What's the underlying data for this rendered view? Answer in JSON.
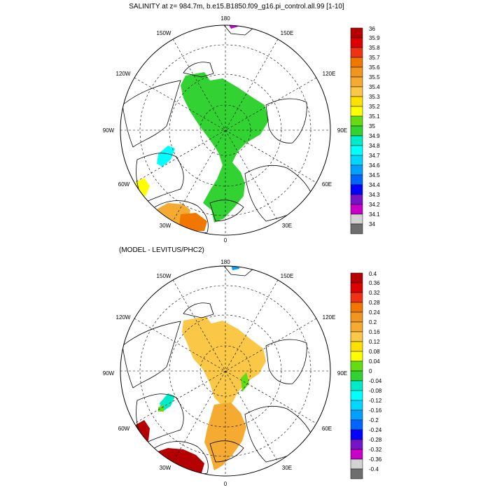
{
  "panels": [
    {
      "title": "SALINITY at z= 984.7m, b.e15.B1850.f09_g16.pi_control.all.99 [1-10]",
      "lon_labels": [
        "180",
        "150E",
        "120E",
        "90E",
        "60E",
        "30E",
        "0",
        "30W",
        "60W",
        "90W",
        "120W",
        "150W"
      ],
      "colorbar": {
        "labels": [
          "36",
          "35.9",
          "35.8",
          "35.7",
          "35.6",
          "35.5",
          "35.4",
          "35.3",
          "35.2",
          "35.1",
          "35",
          "34.9",
          "34.8",
          "34.7",
          "34.6",
          "34.5",
          "34.4",
          "34.3",
          "34.2",
          "34.1",
          "34"
        ],
        "colors": [
          "#b40000",
          "#dc0000",
          "#f03214",
          "#f07800",
          "#f0961e",
          "#f5aa32",
          "#fac846",
          "#ffe100",
          "#ffff00",
          "#64dc14",
          "#32d232",
          "#00ebc8",
          "#00ffff",
          "#00d7ff",
          "#00a0ff",
          "#0064ff",
          "#0000ff",
          "#7814c8",
          "#c800c8",
          "#d2d2d2",
          "#6e6e6e"
        ]
      }
    },
    {
      "title": "(MODEL - LEVITUS/PHC2)",
      "lon_labels": [
        "180",
        "150E",
        "120E",
        "90E",
        "60E",
        "30E",
        "0",
        "30W",
        "60W",
        "90W",
        "120W",
        "150W"
      ],
      "colorbar": {
        "labels": [
          "0.4",
          "0.36",
          "0.32",
          "0.28",
          "0.24",
          "0.2",
          "0.16",
          "0.12",
          "0.08",
          "0.04",
          "0",
          "-0.04",
          "-0.08",
          "-0.12",
          "-0.16",
          "-0.2",
          "-0.24",
          "-0.28",
          "-0.32",
          "-0.36",
          "-0.4"
        ],
        "colors": [
          "#b40000",
          "#dc0000",
          "#f03214",
          "#f07800",
          "#f0961e",
          "#f5aa32",
          "#fac846",
          "#ffe100",
          "#ffff00",
          "#64dc14",
          "#32d232",
          "#00ebc8",
          "#00ffff",
          "#00d7ff",
          "#00a0ff",
          "#0064ff",
          "#0000ff",
          "#7814c8",
          "#c800c8",
          "#d2d2d2",
          "#6e6e6e"
        ]
      }
    }
  ]
}
